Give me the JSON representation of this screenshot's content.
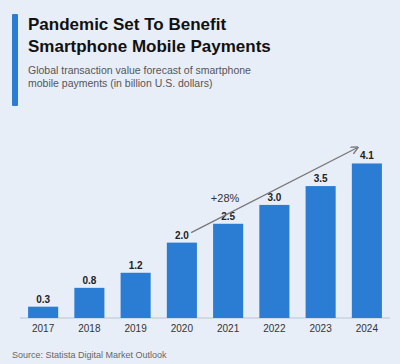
{
  "chart_data": {
    "type": "bar",
    "title": "Pandemic Set To Benefit\nSmartphone Mobile Payments",
    "subtitle": "Global transaction value forecast of smartphone\nmobile payments (in billion U.S. dollars)",
    "source": "Source: Statista Digital Market Outlook",
    "annotations": [
      "+28%"
    ],
    "categories": [
      "2017",
      "2018",
      "2019",
      "2020",
      "2021",
      "2022",
      "2023",
      "2024"
    ],
    "values": [
      0.3,
      0.8,
      1.2,
      2.0,
      2.5,
      3.0,
      3.5,
      4.1
    ],
    "value_labels": [
      "0.3",
      "0.8",
      "1.2",
      "2.0",
      "2.5",
      "3.0",
      "3.5",
      "4.1"
    ],
    "color": "#2b7cd3",
    "ylim": [
      0,
      5.2
    ],
    "data_labels": true,
    "tick_labels": "x"
  }
}
